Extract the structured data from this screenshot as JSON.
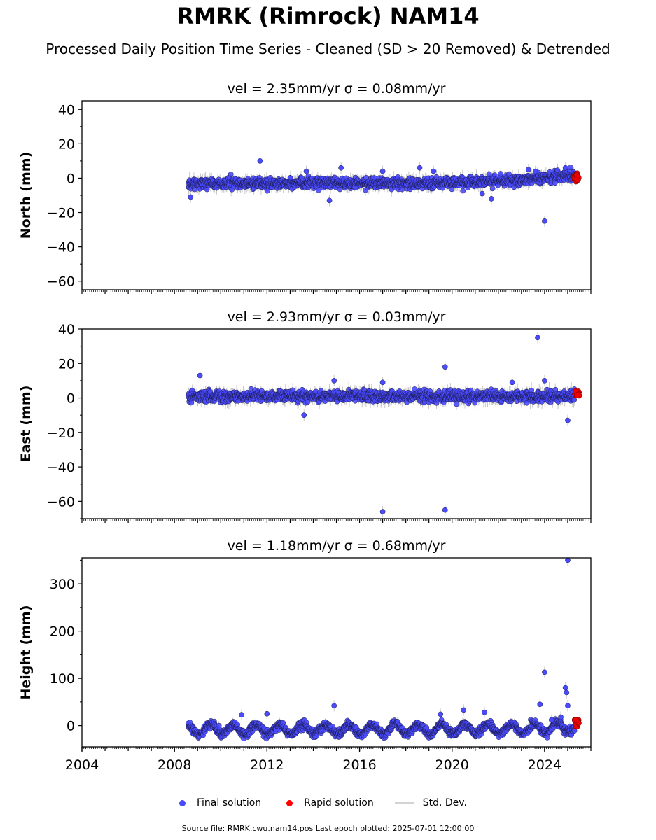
{
  "title": "RMRK (Rimrock) NAM14",
  "subtitle": "Processed Daily Position Time Series - Cleaned (SD > 20 Removed) & Detrended",
  "legend": {
    "final_label": "Final solution",
    "rapid_label": "Rapid solution",
    "std_label": "Std. Dev.",
    "final_color": "#4a4aff",
    "rapid_color": "#ff0000",
    "std_color": "#d3d3d3"
  },
  "footer": "Source file: RMRK.cwu.nam14.pos  Last epoch plotted: 2025-07-01 12:00:00",
  "colors": {
    "final": "#4a4aff",
    "final_edge": "#1a1a4a",
    "rapid": "#ee0000",
    "std": "#c8c8c8"
  },
  "chart_data": [
    {
      "type": "scatter",
      "title": "vel = 2.35mm/yr   σ = 0.08mm/yr",
      "ylabel": "North (mm)",
      "xlim": [
        2004,
        2026
      ],
      "ylim": [
        -65,
        45
      ],
      "yticks": [
        -60,
        -40,
        -20,
        0,
        20,
        40
      ],
      "x_range_final": [
        2008.6,
        2025.3
      ],
      "typical_spread": 2.5,
      "base": -3,
      "trend_end": 2,
      "outliers": [
        {
          "x": 2008.7,
          "y": -11
        },
        {
          "x": 2011.7,
          "y": 10
        },
        {
          "x": 2013.7,
          "y": 4
        },
        {
          "x": 2014.7,
          "y": -13
        },
        {
          "x": 2015.2,
          "y": 6
        },
        {
          "x": 2017.0,
          "y": 4
        },
        {
          "x": 2018.6,
          "y": 6
        },
        {
          "x": 2019.2,
          "y": 4
        },
        {
          "x": 2021.3,
          "y": -9
        },
        {
          "x": 2021.7,
          "y": -12
        },
        {
          "x": 2023.3,
          "y": 5
        },
        {
          "x": 2023.6,
          "y": 4
        },
        {
          "x": 2024.0,
          "y": -25
        },
        {
          "x": 2024.9,
          "y": 6
        }
      ],
      "rapid": {
        "x_range": [
          2025.3,
          2025.5
        ],
        "y_range": [
          -2,
          3
        ]
      }
    },
    {
      "type": "scatter",
      "title": "vel = 2.93mm/yr   σ = 0.03mm/yr",
      "ylabel": "East (mm)",
      "xlim": [
        2004,
        2026
      ],
      "ylim": [
        -70,
        40
      ],
      "yticks": [
        -60,
        -40,
        -20,
        0,
        20,
        40
      ],
      "x_range_final": [
        2008.6,
        2025.3
      ],
      "typical_spread": 2.5,
      "base": 1,
      "trend_end": 1,
      "outliers": [
        {
          "x": 2009.1,
          "y": 13
        },
        {
          "x": 2013.6,
          "y": -10
        },
        {
          "x": 2014.9,
          "y": 10
        },
        {
          "x": 2017.0,
          "y": 9
        },
        {
          "x": 2017.0,
          "y": -66
        },
        {
          "x": 2019.7,
          "y": 18
        },
        {
          "x": 2019.7,
          "y": -65
        },
        {
          "x": 2022.6,
          "y": 9
        },
        {
          "x": 2023.7,
          "y": 35
        },
        {
          "x": 2024.0,
          "y": 10
        },
        {
          "x": 2025.0,
          "y": -13
        }
      ],
      "rapid": {
        "x_range": [
          2025.3,
          2025.5
        ],
        "y_range": [
          1,
          4
        ]
      }
    },
    {
      "type": "scatter",
      "title": "vel = 1.18mm/yr   σ = 0.68mm/yr",
      "ylabel": "Height (mm)",
      "xlabel": "",
      "xlim": [
        2004,
        2026
      ],
      "ylim": [
        -45,
        355
      ],
      "yticks": [
        0,
        100,
        200,
        300
      ],
      "xticks": [
        2004,
        2008,
        2012,
        2016,
        2020,
        2024
      ],
      "x_range_final": [
        2008.6,
        2025.3
      ],
      "typical_spread": 7,
      "base": -8,
      "trend_end": -3,
      "seasonal_amplitude": 10,
      "outliers": [
        {
          "x": 2010.9,
          "y": 23
        },
        {
          "x": 2012.0,
          "y": 25
        },
        {
          "x": 2014.9,
          "y": 42
        },
        {
          "x": 2019.5,
          "y": 24
        },
        {
          "x": 2020.5,
          "y": 33
        },
        {
          "x": 2021.4,
          "y": 28
        },
        {
          "x": 2023.8,
          "y": 45
        },
        {
          "x": 2024.0,
          "y": 113
        },
        {
          "x": 2024.3,
          "y": 12
        },
        {
          "x": 2024.9,
          "y": 80
        },
        {
          "x": 2024.95,
          "y": 70
        },
        {
          "x": 2025.0,
          "y": 42
        },
        {
          "x": 2025.0,
          "y": 350
        },
        {
          "x": 2024.7,
          "y": 18
        }
      ],
      "rapid": {
        "x_range": [
          2025.3,
          2025.5
        ],
        "y_range": [
          -2,
          12
        ]
      }
    }
  ]
}
